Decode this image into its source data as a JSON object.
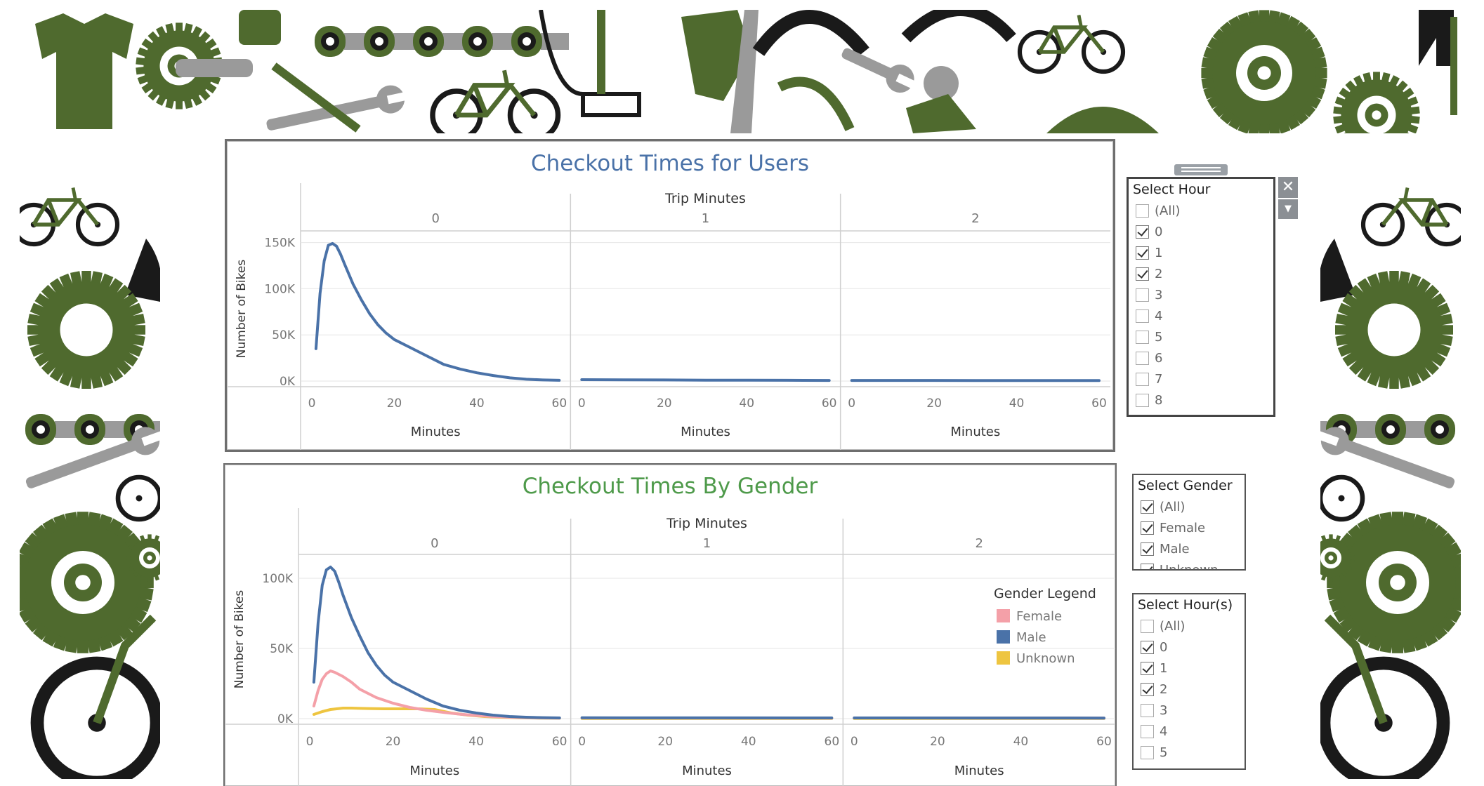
{
  "charts": [
    {
      "id": "users",
      "title": "Checkout Times for Users",
      "column_header": "Trip Minutes",
      "facets": [
        "0",
        "1",
        "2"
      ],
      "ylabel": "Number of Bikes",
      "xlabel": "Minutes",
      "ytick_labels": [
        "150K",
        "100K",
        "50K",
        "0K"
      ],
      "xtick_labels": [
        "0",
        "20",
        "40",
        "60"
      ],
      "color": "#4a72a8"
    },
    {
      "id": "gender",
      "title": "Checkout Times By Gender",
      "column_header": "Trip Minutes",
      "facets": [
        "0",
        "1",
        "2"
      ],
      "ylabel": "Number of Bikes",
      "xlabel": "Minutes",
      "ytick_labels": [
        "100K",
        "50K",
        "0K"
      ],
      "xtick_labels": [
        "0",
        "20",
        "40",
        "60"
      ],
      "legend": {
        "title": "Gender Legend",
        "items": [
          {
            "label": "Female",
            "color": "#f4a0a8"
          },
          {
            "label": "Male",
            "color": "#4a72a8"
          },
          {
            "label": "Unknown",
            "color": "#eec540"
          }
        ]
      }
    }
  ],
  "chart_data": [
    {
      "type": "line",
      "title": "Checkout Times for Users",
      "column_header": "Trip Minutes",
      "xlabel": "Minutes",
      "ylabel": "Number of Bikes",
      "xlim": [
        0,
        60
      ],
      "ylim": [
        0,
        155000
      ],
      "grid": true,
      "facets": [
        {
          "label": "0",
          "series": [
            {
              "x": [
                1,
                2,
                3,
                4,
                5,
                6,
                7,
                8,
                10,
                12,
                14,
                16,
                18,
                20,
                24,
                28,
                32,
                36,
                40,
                44,
                48,
                52,
                56,
                60
              ],
              "y": [
                35000,
                95000,
                130000,
                147000,
                149000,
                146000,
                137000,
                126000,
                105000,
                88000,
                73000,
                61000,
                52000,
                45000,
                36000,
                27000,
                18000,
                13000,
                9000,
                6000,
                3500,
                2000,
                1200,
                800
              ]
            }
          ]
        },
        {
          "label": "1",
          "series": [
            {
              "x": [
                0,
                10,
                20,
                30,
                40,
                50,
                60
              ],
              "y": [
                1500,
                1400,
                1200,
                1000,
                900,
                800,
                700
              ]
            }
          ]
        },
        {
          "label": "2",
          "series": [
            {
              "x": [
                0,
                10,
                20,
                30,
                40,
                50,
                60
              ],
              "y": [
                700,
                700,
                650,
                600,
                600,
                550,
                500
              ]
            }
          ]
        }
      ]
    },
    {
      "type": "line",
      "title": "Checkout Times By Gender",
      "column_header": "Trip Minutes",
      "xlabel": "Minutes",
      "ylabel": "Number of Bikes",
      "xlim": [
        0,
        60
      ],
      "ylim": [
        0,
        112000
      ],
      "grid": true,
      "legend_title": "Gender Legend",
      "legend_position": "right",
      "facets": [
        {
          "label": "0",
          "series": [
            {
              "name": "Female",
              "x": [
                1,
                2,
                3,
                4,
                5,
                6,
                8,
                10,
                12,
                16,
                20,
                24,
                28,
                32,
                36,
                40,
                44,
                48,
                52,
                56,
                60
              ],
              "y": [
                9000,
                20000,
                28000,
                32000,
                34000,
                33000,
                30000,
                26000,
                21000,
                15000,
                11000,
                8000,
                6000,
                4500,
                3200,
                2200,
                1500,
                1000,
                700,
                500,
                400
              ]
            },
            {
              "name": "Male",
              "x": [
                1,
                2,
                3,
                4,
                5,
                6,
                7,
                8,
                10,
                12,
                14,
                16,
                18,
                20,
                24,
                28,
                32,
                36,
                40,
                44,
                48,
                52,
                56,
                60
              ],
              "y": [
                26000,
                68000,
                95000,
                106000,
                108000,
                105000,
                97000,
                88000,
                72000,
                59000,
                47000,
                38000,
                31000,
                26000,
                20000,
                14000,
                9000,
                6000,
                4000,
                2500,
                1500,
                1000,
                700,
                500
              ]
            },
            {
              "name": "Unknown",
              "x": [
                1,
                3,
                5,
                8,
                10,
                14,
                18,
                22,
                26,
                30,
                34,
                38,
                42,
                46,
                50,
                55,
                60
              ],
              "y": [
                3000,
                5000,
                6500,
                7500,
                7500,
                7200,
                7000,
                7000,
                7000,
                6500,
                4000,
                2500,
                1500,
                1000,
                600,
                400,
                300
              ]
            }
          ]
        },
        {
          "label": "1",
          "series": [
            {
              "name": "Female",
              "x": [
                0,
                60
              ],
              "y": [
                500,
                400
              ]
            },
            {
              "name": "Male",
              "x": [
                0,
                60
              ],
              "y": [
                600,
                500
              ]
            },
            {
              "name": "Unknown",
              "x": [
                0,
                60
              ],
              "y": [
                100,
                100
              ]
            }
          ]
        },
        {
          "label": "2",
          "series": [
            {
              "name": "Female",
              "x": [
                0,
                60
              ],
              "y": [
                500,
                400
              ]
            },
            {
              "name": "Male",
              "x": [
                0,
                60
              ],
              "y": [
                500,
                400
              ]
            },
            {
              "name": "Unknown",
              "x": [
                0,
                60
              ],
              "y": [
                100,
                100
              ]
            }
          ]
        }
      ]
    }
  ],
  "filters": {
    "select_hour": {
      "title": "Select Hour",
      "items": [
        {
          "label": "(All)",
          "checked": false
        },
        {
          "label": "0",
          "checked": true
        },
        {
          "label": "1",
          "checked": true
        },
        {
          "label": "2",
          "checked": true
        },
        {
          "label": "3",
          "checked": false
        },
        {
          "label": "4",
          "checked": false
        },
        {
          "label": "5",
          "checked": false
        },
        {
          "label": "6",
          "checked": false
        },
        {
          "label": "7",
          "checked": false
        },
        {
          "label": "8",
          "checked": false
        }
      ],
      "close_glyph": "✕",
      "menu_glyph": "▼"
    },
    "select_gender": {
      "title": "Select Gender",
      "items": [
        {
          "label": "(All)",
          "checked": true
        },
        {
          "label": "Female",
          "checked": true
        },
        {
          "label": "Male",
          "checked": true
        },
        {
          "label": "Unknown",
          "checked": true
        }
      ]
    },
    "select_hours": {
      "title": "Select Hour(s)",
      "items": [
        {
          "label": "(All)",
          "checked": false
        },
        {
          "label": "0",
          "checked": true
        },
        {
          "label": "1",
          "checked": true
        },
        {
          "label": "2",
          "checked": true
        },
        {
          "label": "3",
          "checked": false
        },
        {
          "label": "4",
          "checked": false
        },
        {
          "label": "5",
          "checked": false
        }
      ]
    }
  },
  "decor": {
    "art_green": "#4f6a2e",
    "art_grey": "#9a9a9a",
    "art_black": "#1a1a1a"
  }
}
